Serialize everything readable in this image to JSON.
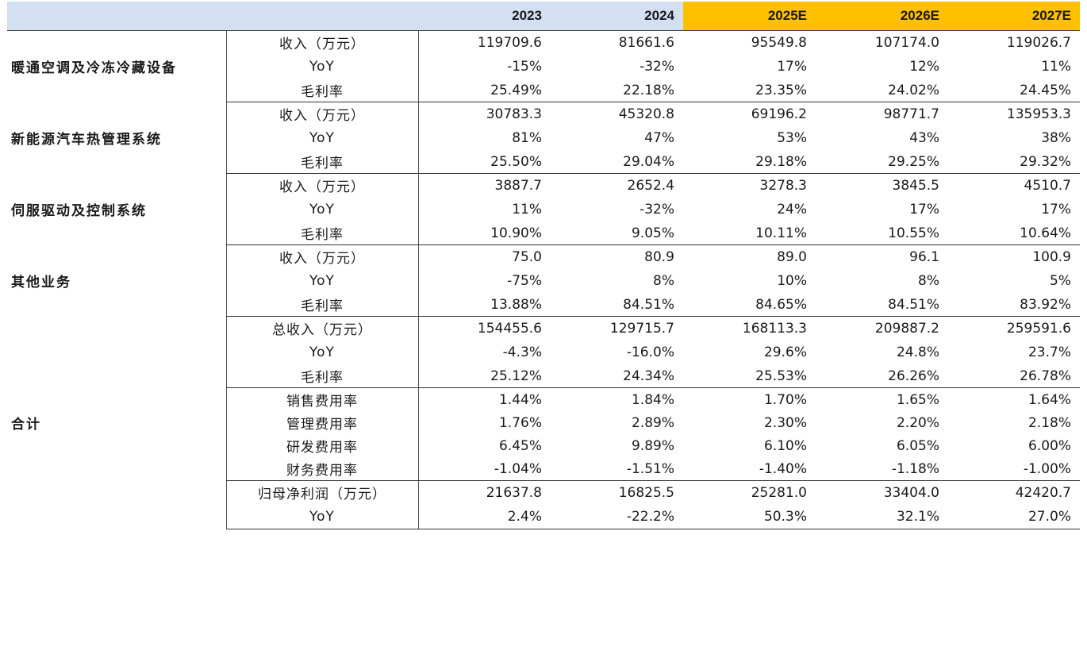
{
  "header": {
    "years": [
      "2023",
      "2024",
      "2025E",
      "2026E",
      "2027E"
    ]
  },
  "groups": [
    {
      "segment": "暖通空调及冷冻冷藏设备",
      "rows": [
        {
          "metric": "收入（万元）",
          "values": [
            "119709.6",
            "81661.6",
            "95549.8",
            "107174.0",
            "119026.7"
          ]
        },
        {
          "metric": "YoY",
          "values": [
            "-15%",
            "-32%",
            "17%",
            "12%",
            "11%"
          ]
        },
        {
          "metric": "毛利率",
          "values": [
            "25.49%",
            "22.18%",
            "23.35%",
            "24.02%",
            "24.45%"
          ]
        }
      ]
    },
    {
      "segment": "新能源汽车热管理系统",
      "rows": [
        {
          "metric": "收入（万元）",
          "values": [
            "30783.3",
            "45320.8",
            "69196.2",
            "98771.7",
            "135953.3"
          ]
        },
        {
          "metric": "YoY",
          "values": [
            "81%",
            "47%",
            "53%",
            "43%",
            "38%"
          ]
        },
        {
          "metric": "毛利率",
          "values": [
            "25.50%",
            "29.04%",
            "29.18%",
            "29.25%",
            "29.32%"
          ]
        }
      ]
    },
    {
      "segment": "伺服驱动及控制系统",
      "rows": [
        {
          "metric": "收入（万元）",
          "values": [
            "3887.7",
            "2652.4",
            "3278.3",
            "3845.5",
            "4510.7"
          ]
        },
        {
          "metric": "YoY",
          "values": [
            "11%",
            "-32%",
            "24%",
            "17%",
            "17%"
          ]
        },
        {
          "metric": "毛利率",
          "values": [
            "10.90%",
            "9.05%",
            "10.11%",
            "10.55%",
            "10.64%"
          ]
        }
      ]
    },
    {
      "segment": "其他业务",
      "rows": [
        {
          "metric": "收入（万元）",
          "values": [
            "75.0",
            "80.9",
            "89.0",
            "96.1",
            "100.9"
          ]
        },
        {
          "metric": "YoY",
          "values": [
            "-75%",
            "8%",
            "10%",
            "8%",
            "5%"
          ]
        },
        {
          "metric": "毛利率",
          "values": [
            "13.88%",
            "84.51%",
            "84.65%",
            "84.51%",
            "83.92%"
          ]
        }
      ]
    },
    {
      "segment": "合计",
      "rows": [
        {
          "metric": "总收入（万元）",
          "values": [
            "154455.6",
            "129715.7",
            "168113.3",
            "209887.2",
            "259591.6"
          ]
        },
        {
          "metric": "YoY",
          "values": [
            "-4.3%",
            "-16.0%",
            "29.6%",
            "24.8%",
            "23.7%"
          ]
        },
        {
          "metric": "毛利率",
          "values": [
            "25.12%",
            "24.34%",
            "25.53%",
            "26.26%",
            "26.78%"
          ],
          "subend": true
        },
        {
          "metric": "销售费用率",
          "values": [
            "1.44%",
            "1.84%",
            "1.70%",
            "1.65%",
            "1.64%"
          ]
        },
        {
          "metric": "管理费用率",
          "values": [
            "1.76%",
            "2.89%",
            "2.30%",
            "2.20%",
            "2.18%"
          ]
        },
        {
          "metric": "研发费用率",
          "values": [
            "6.45%",
            "9.89%",
            "6.10%",
            "6.05%",
            "6.00%"
          ]
        },
        {
          "metric": "财务费用率",
          "values": [
            "-1.04%",
            "-1.51%",
            "-1.40%",
            "-1.18%",
            "-1.00%"
          ],
          "subend": true
        },
        {
          "metric": "归母净利润（万元）",
          "values": [
            "21637.8",
            "16825.5",
            "25281.0",
            "33404.0",
            "42420.7"
          ]
        },
        {
          "metric": "YoY",
          "values": [
            "2.4%",
            "-22.2%",
            "50.3%",
            "32.1%",
            "27.0%"
          ]
        }
      ]
    }
  ]
}
